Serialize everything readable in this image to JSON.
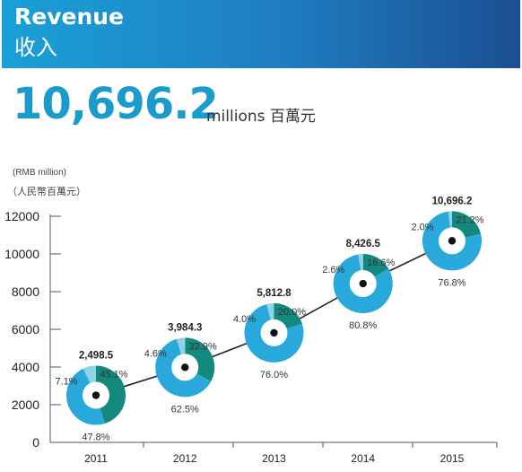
{
  "header": {
    "title": "Revenue",
    "subtitle": "收入"
  },
  "headline": {
    "value": "10,696.2",
    "unit": "millions 百萬元"
  },
  "colors": {
    "banner": "#1f7cc0",
    "headline": "#1b9bc9",
    "donut_blue": "#29a9db",
    "donut_teal": "#13897e",
    "donut_light": "#8fd3e9",
    "axis": "#555555",
    "trend_line": "#222222"
  },
  "chart_data": {
    "type": "line",
    "title": "",
    "ylabel": "(RMB million)",
    "ylabel_zh": "（人民幣百萬元）",
    "xlabel": "",
    "x": [
      "2011",
      "2012",
      "2013",
      "2014",
      "2015"
    ],
    "values": [
      2498.5,
      3984.3,
      5812.8,
      8426.5,
      10696.2
    ],
    "value_labels": [
      "2,498.5",
      "3,984.3",
      "5,812.8",
      "8,426.5",
      "10,696.2"
    ],
    "ylim": [
      0,
      12000
    ],
    "yticks": [
      0,
      2000,
      4000,
      6000,
      8000,
      10000,
      12000
    ],
    "ytick_labels": [
      "0",
      "2000",
      "4000",
      "6000",
      "8000",
      "10000",
      "12000"
    ],
    "grid": false,
    "breakdown": [
      {
        "year": "2011",
        "blue": 47.8,
        "teal": 45.1,
        "light": 7.1,
        "blue_label": "47.8%",
        "teal_label": "45.1%",
        "light_label": "7.1%"
      },
      {
        "year": "2012",
        "blue": 62.5,
        "teal": 32.9,
        "light": 4.6,
        "blue_label": "62.5%",
        "teal_label": "32.9%",
        "light_label": "4.6%"
      },
      {
        "year": "2013",
        "blue": 76.0,
        "teal": 20.0,
        "light": 4.0,
        "blue_label": "76.0%",
        "teal_label": "20.0%",
        "light_label": "4.0%"
      },
      {
        "year": "2014",
        "blue": 80.8,
        "teal": 16.6,
        "light": 2.6,
        "blue_label": "80.8%",
        "teal_label": "16.6%",
        "light_label": "2.6%"
      },
      {
        "year": "2015",
        "blue": 76.8,
        "teal": 21.2,
        "light": 2.0,
        "blue_label": "76.8%",
        "teal_label": "21.2%",
        "light_label": "2.0%"
      }
    ]
  }
}
